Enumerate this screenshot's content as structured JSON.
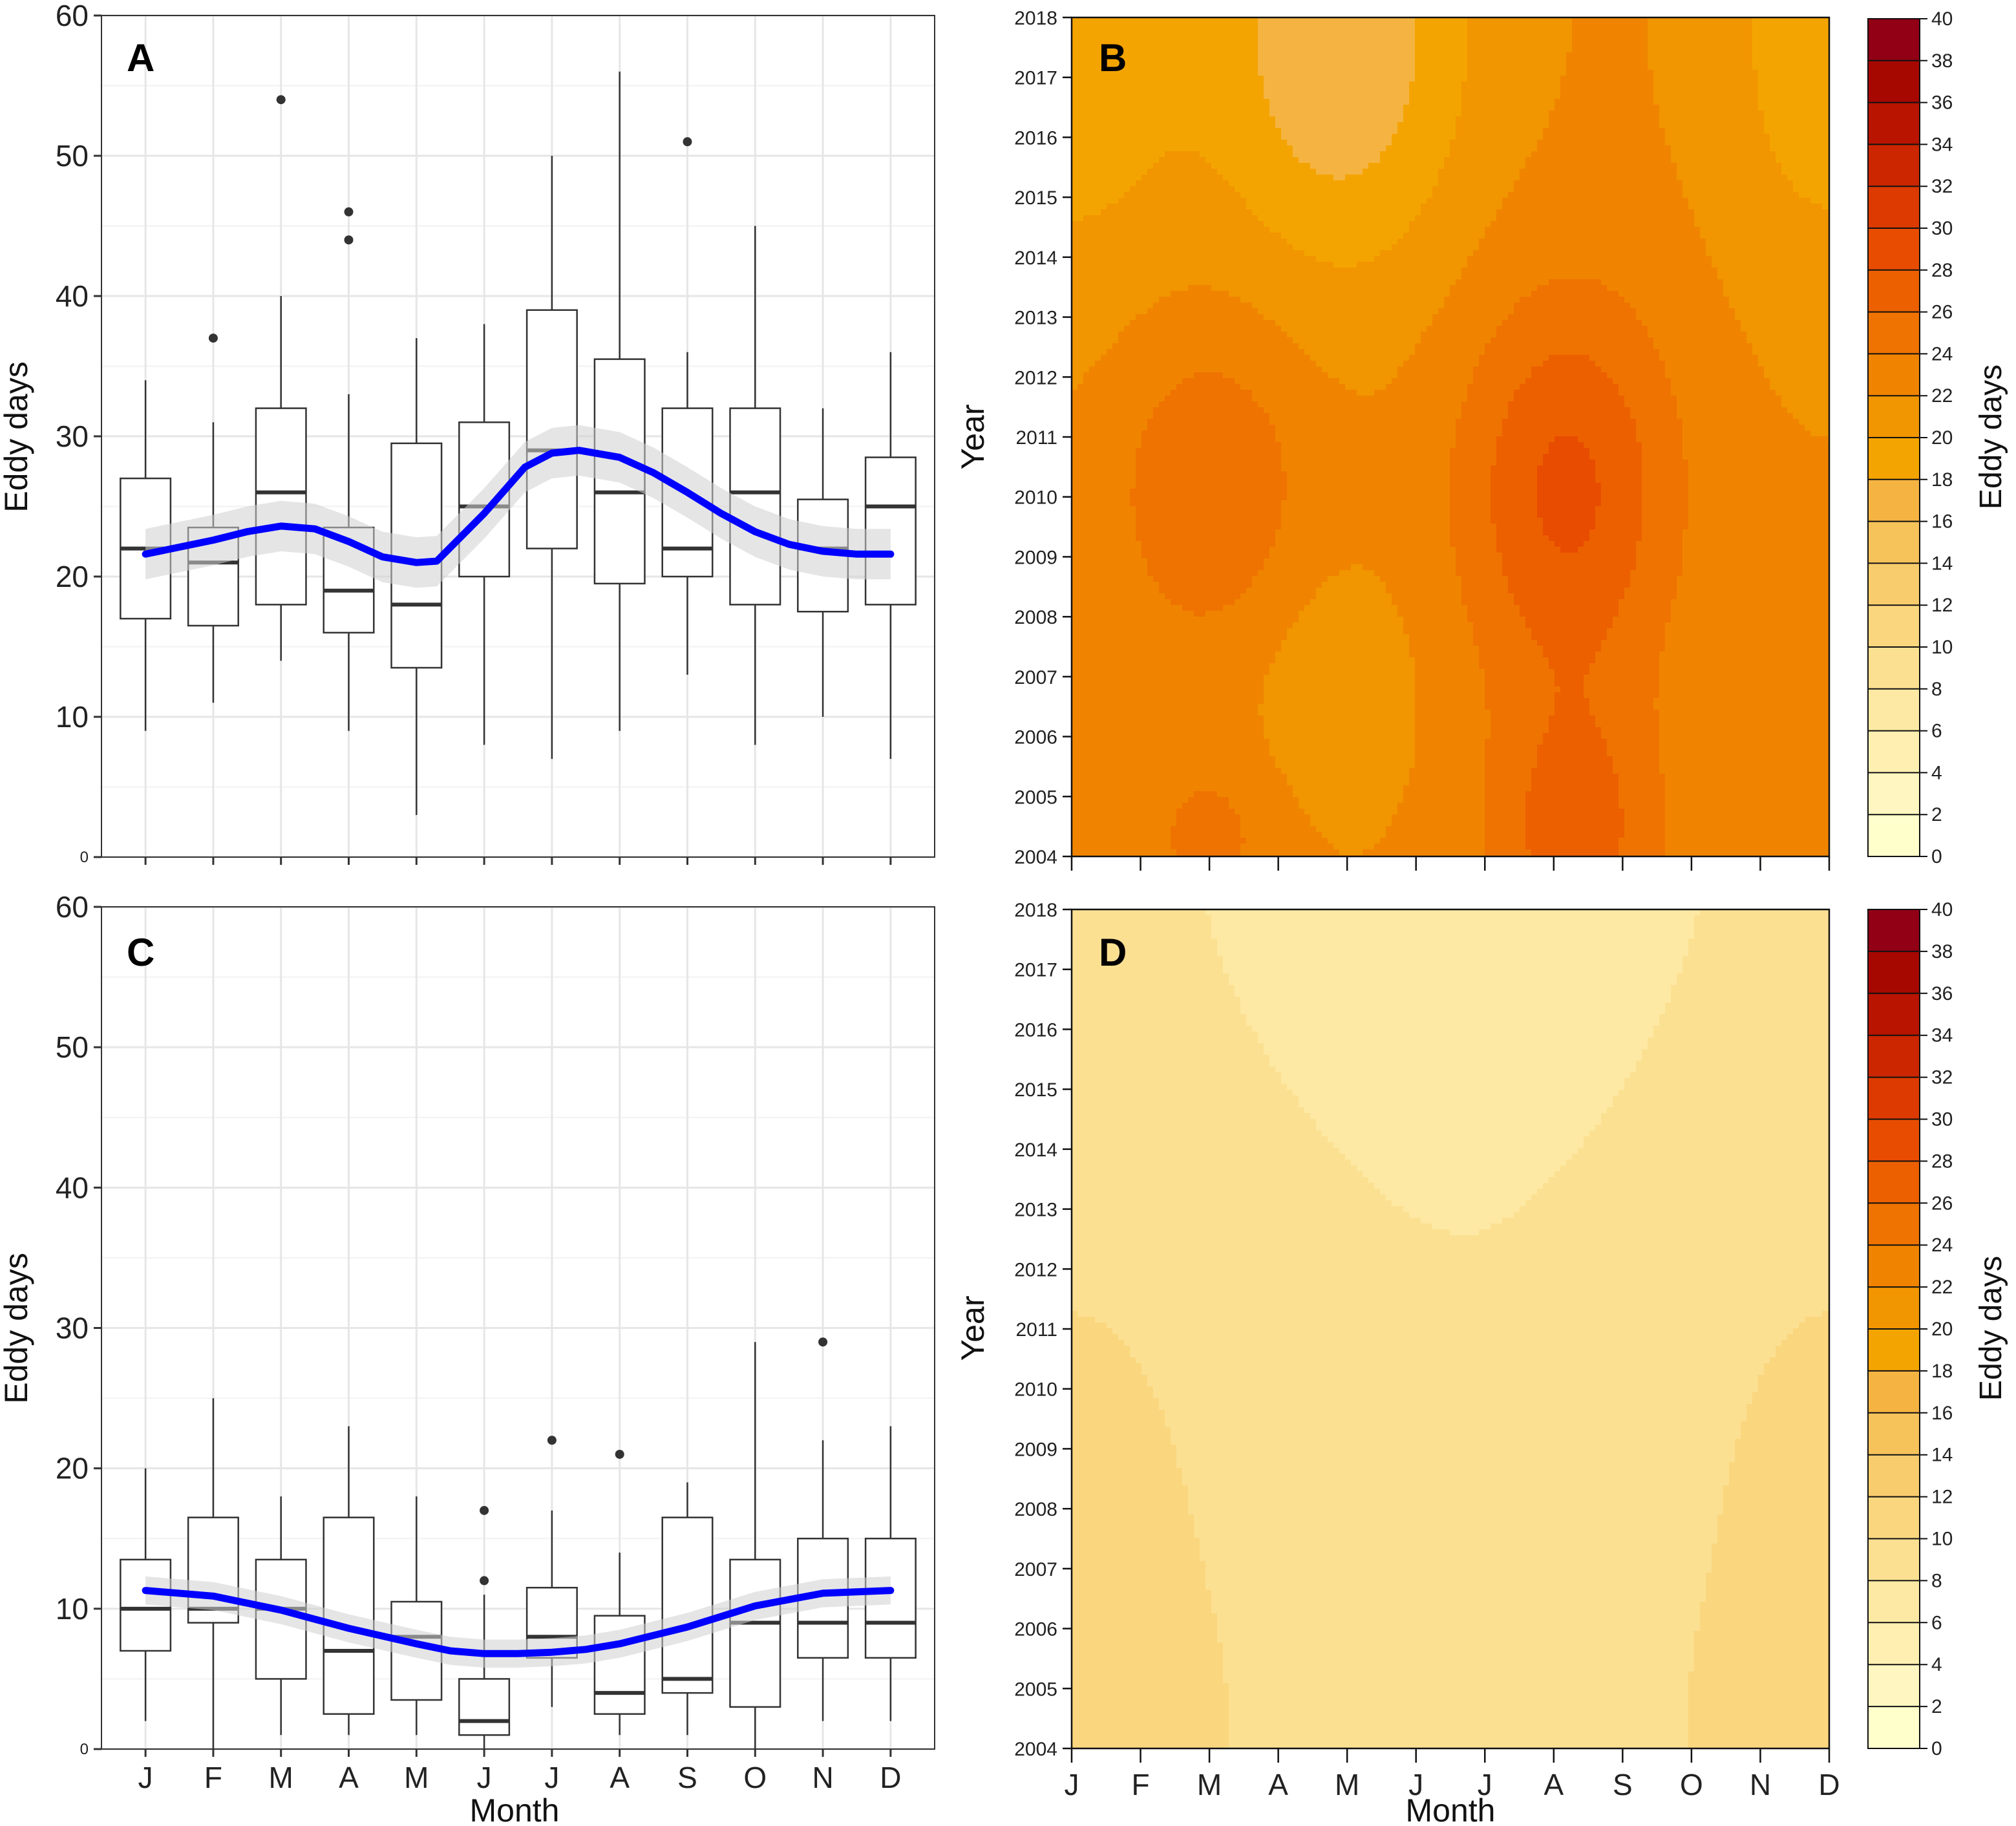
{
  "figure": {
    "month_axis_label": "Month",
    "eddy_axis_label": "Eddy days",
    "year_axis_label": "Year",
    "colorbar_label": "Eddy days"
  },
  "colors": {
    "smooth_line": "#0000ff",
    "ribbon": "#d0d0d0",
    "grid": "#e6e6e6",
    "box_edge": "#333333",
    "contour_scale": [
      "#ffffcc",
      "#fff6c1",
      "#fff0b2",
      "#fde9a3",
      "#fce092",
      "#fad67e",
      "#f8cc6c",
      "#f6c25a",
      "#f5b442",
      "#f4a400",
      "#f19500",
      "#f08400",
      "#ef7300",
      "#ec6000",
      "#e84c00",
      "#dc3a00",
      "#cc2600",
      "#b81400",
      "#a60800",
      "#920016",
      "#7a0022"
    ]
  },
  "chart_data": [
    {
      "panel": "A",
      "type": "box",
      "title": "A",
      "xlabel": "",
      "ylabel": "Eddy days",
      "ylim": [
        0,
        60
      ],
      "yticks": [
        "0",
        "10",
        "20",
        "30",
        "40",
        "50",
        "60"
      ],
      "categories": [
        "J",
        "F",
        "M",
        "A",
        "M",
        "J",
        "J",
        "A",
        "S",
        "O",
        "N",
        "D"
      ],
      "boxes": [
        {
          "min": 9,
          "q1": 17,
          "median": 22,
          "q3": 27,
          "max": 34,
          "outliers": []
        },
        {
          "min": 11,
          "q1": 16.5,
          "median": 21,
          "q3": 23.5,
          "max": 31,
          "outliers": [
            37
          ]
        },
        {
          "min": 14,
          "q1": 18,
          "median": 26,
          "q3": 32,
          "max": 40,
          "outliers": [
            54
          ]
        },
        {
          "min": 9,
          "q1": 16,
          "median": 19,
          "q3": 23.5,
          "max": 33,
          "outliers": [
            44,
            46
          ]
        },
        {
          "min": 3,
          "q1": 13.5,
          "median": 18,
          "q3": 29.5,
          "max": 37,
          "outliers": []
        },
        {
          "min": 8,
          "q1": 20,
          "median": 25,
          "q3": 31,
          "max": 38,
          "outliers": []
        },
        {
          "min": 7,
          "q1": 22,
          "median": 29,
          "q3": 39,
          "max": 50,
          "outliers": []
        },
        {
          "min": 9,
          "q1": 19.5,
          "median": 26,
          "q3": 35.5,
          "max": 56,
          "outliers": []
        },
        {
          "min": 13,
          "q1": 20,
          "median": 22,
          "q3": 32,
          "max": 36,
          "outliers": [
            51
          ]
        },
        {
          "min": 8,
          "q1": 18,
          "median": 26,
          "q3": 32,
          "max": 45,
          "outliers": []
        },
        {
          "min": 10,
          "q1": 17.5,
          "median": 22,
          "q3": 25.5,
          "max": 32,
          "outliers": []
        },
        {
          "min": 7,
          "q1": 18,
          "median": 25,
          "q3": 28.5,
          "max": 36,
          "outliers": []
        }
      ],
      "smooth": {
        "x": [
          1,
          2,
          2.5,
          3,
          3.5,
          4,
          4.5,
          5,
          5.3,
          6,
          6.6,
          7,
          7.4,
          8,
          8.5,
          9,
          9.5,
          10,
          10.5,
          11,
          11.5,
          12
        ],
        "y": [
          21.6,
          22.6,
          23.2,
          23.6,
          23.4,
          22.5,
          21.4,
          21.0,
          21.1,
          24.5,
          27.8,
          28.8,
          29.0,
          28.5,
          27.4,
          26.0,
          24.5,
          23.2,
          22.3,
          21.8,
          21.6,
          21.6
        ],
        "band": 1.8
      }
    },
    {
      "panel": "B",
      "type": "heatmap",
      "title": "B",
      "xlabel": "",
      "ylabel": "Year",
      "yticks": [
        "2004",
        "2005",
        "2006",
        "2007",
        "2008",
        "2009",
        "2010",
        "2011",
        "2012",
        "2013",
        "2014",
        "2015",
        "2016",
        "2017",
        "2018"
      ],
      "xticks": [],
      "colorbar_ticks": [
        "0",
        "2",
        "4",
        "6",
        "8",
        "10",
        "12",
        "14",
        "16",
        "18",
        "20",
        "22",
        "24",
        "26",
        "28",
        "30",
        "32",
        "34",
        "36",
        "38",
        "40"
      ],
      "colorbar_label": "Eddy days",
      "zlim": [
        0,
        40
      ]
    },
    {
      "panel": "C",
      "type": "box",
      "title": "C",
      "xlabel": "Month",
      "ylabel": "Eddy days",
      "ylim": [
        0,
        60
      ],
      "yticks": [
        "0",
        "10",
        "20",
        "30",
        "40",
        "50",
        "60"
      ],
      "categories": [
        "J",
        "F",
        "M",
        "A",
        "M",
        "J",
        "J",
        "A",
        "S",
        "O",
        "N",
        "D"
      ],
      "boxes": [
        {
          "min": 2,
          "q1": 7,
          "median": 10,
          "q3": 13.5,
          "max": 20,
          "outliers": []
        },
        {
          "min": 0,
          "q1": 9,
          "median": 10,
          "q3": 16.5,
          "max": 25,
          "outliers": []
        },
        {
          "min": 1,
          "q1": 5,
          "median": 10,
          "q3": 13.5,
          "max": 18,
          "outliers": []
        },
        {
          "min": 1,
          "q1": 2.5,
          "median": 7,
          "q3": 16.5,
          "max": 23,
          "outliers": []
        },
        {
          "min": 1,
          "q1": 3.5,
          "median": 8,
          "q3": 10.5,
          "max": 18,
          "outliers": []
        },
        {
          "min": 0,
          "q1": 1,
          "median": 2,
          "q3": 5,
          "max": 11,
          "outliers": [
            12,
            17
          ]
        },
        {
          "min": 3,
          "q1": 6.5,
          "median": 8,
          "q3": 11.5,
          "max": 17,
          "outliers": [
            22
          ]
        },
        {
          "min": 1,
          "q1": 2.5,
          "median": 4,
          "q3": 9.5,
          "max": 14,
          "outliers": [
            21
          ]
        },
        {
          "min": 1,
          "q1": 4,
          "median": 5,
          "q3": 16.5,
          "max": 19,
          "outliers": []
        },
        {
          "min": 0,
          "q1": 3,
          "median": 9,
          "q3": 13.5,
          "max": 29,
          "outliers": []
        },
        {
          "min": 2,
          "q1": 6.5,
          "median": 9,
          "q3": 15,
          "max": 22,
          "outliers": [
            29
          ]
        },
        {
          "min": 2,
          "q1": 6.5,
          "median": 9,
          "q3": 15,
          "max": 23,
          "outliers": []
        }
      ],
      "smooth": {
        "x": [
          1,
          2,
          3,
          4,
          5,
          5.5,
          6,
          6.5,
          7,
          7.5,
          8,
          9,
          10,
          11,
          12
        ],
        "y": [
          11.3,
          10.9,
          9.9,
          8.6,
          7.5,
          7.0,
          6.8,
          6.8,
          6.9,
          7.1,
          7.5,
          8.7,
          10.2,
          11.1,
          11.3
        ],
        "band": 1.0
      }
    },
    {
      "panel": "D",
      "type": "heatmap",
      "title": "D",
      "xlabel": "Month",
      "ylabel": "Year",
      "yticks": [
        "2004",
        "2005",
        "2006",
        "2007",
        "2008",
        "2009",
        "2010",
        "2011",
        "2012",
        "2013",
        "2014",
        "2015",
        "2016",
        "2017",
        "2018"
      ],
      "xticks": [
        "J",
        "F",
        "M",
        "A",
        "M",
        "J",
        "J",
        "A",
        "S",
        "O",
        "N",
        "D"
      ],
      "colorbar_ticks": [
        "0",
        "2",
        "4",
        "6",
        "8",
        "10",
        "12",
        "14",
        "16",
        "18",
        "20",
        "22",
        "24",
        "26",
        "28",
        "30",
        "32",
        "34",
        "36",
        "38",
        "40"
      ],
      "colorbar_label": "Eddy days",
      "zlim": [
        0,
        40
      ]
    }
  ]
}
